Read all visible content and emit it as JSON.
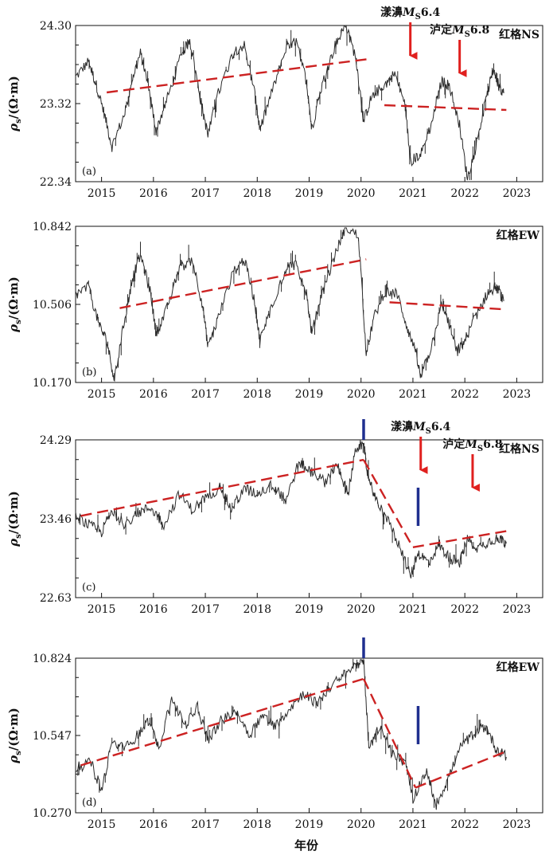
{
  "figure": {
    "x_axis_title": "年份",
    "x_tick_labels": [
      "2015",
      "2016",
      "2017",
      "2018",
      "2019",
      "2020",
      "2021",
      "2022",
      "2023"
    ],
    "y_axis_label_main": "ρ",
    "y_axis_label_sub": "s",
    "y_axis_label_unit": "/(Ω·m)"
  },
  "chart_data": [
    {
      "type": "line",
      "panel_label": "(a)",
      "station": "红格NS",
      "x_range": [
        2014.5,
        2023.5
      ],
      "ylim": [
        22.34,
        24.3
      ],
      "y_ticks": [
        "22.34",
        "23.32",
        "24.30"
      ],
      "colors": {
        "series": "#2b2b2b",
        "trend": "#cc2222",
        "arrow": "#e0201e"
      },
      "series_points": [
        [
          2014.5,
          23.65
        ],
        [
          2014.75,
          23.85
        ],
        [
          2014.9,
          23.55
        ],
        [
          2015.05,
          23.2
        ],
        [
          2015.2,
          22.78
        ],
        [
          2015.45,
          23.2
        ],
        [
          2015.6,
          23.65
        ],
        [
          2015.75,
          23.95
        ],
        [
          2015.9,
          23.55
        ],
        [
          2016.05,
          22.98
        ],
        [
          2016.25,
          23.35
        ],
        [
          2016.55,
          23.95
        ],
        [
          2016.7,
          24.12
        ],
        [
          2016.9,
          23.4
        ],
        [
          2017.05,
          22.92
        ],
        [
          2017.25,
          23.45
        ],
        [
          2017.55,
          23.98
        ],
        [
          2017.75,
          24.05
        ],
        [
          2017.95,
          23.45
        ],
        [
          2018.05,
          22.98
        ],
        [
          2018.25,
          23.4
        ],
        [
          2018.55,
          24.0
        ],
        [
          2018.75,
          24.1
        ],
        [
          2018.95,
          23.6
        ],
        [
          2019.05,
          23.0
        ],
        [
          2019.25,
          23.55
        ],
        [
          2019.5,
          24.05
        ],
        [
          2019.7,
          24.3
        ],
        [
          2019.9,
          23.9
        ],
        [
          2020.05,
          23.1
        ],
        [
          2020.2,
          23.4
        ],
        [
          2020.45,
          23.55
        ],
        [
          2020.65,
          23.7
        ],
        [
          2020.85,
          23.3
        ],
        [
          2020.95,
          22.6
        ],
        [
          2021.15,
          22.68
        ],
        [
          2021.35,
          23.05
        ],
        [
          2021.55,
          23.6
        ],
        [
          2021.7,
          23.55
        ],
        [
          2021.9,
          23.05
        ],
        [
          2022.05,
          22.38
        ],
        [
          2022.2,
          22.75
        ],
        [
          2022.4,
          23.35
        ],
        [
          2022.55,
          23.75
        ],
        [
          2022.65,
          23.55
        ],
        [
          2022.75,
          23.45
        ]
      ],
      "trend_lines": [
        {
          "x": [
            2015.1,
            2020.15
          ],
          "y": [
            23.46,
            23.88
          ]
        },
        {
          "x": [
            2020.45,
            2022.8
          ],
          "y": [
            23.3,
            23.24
          ]
        }
      ],
      "annotations": [
        {
          "label_main": "漾濞",
          "label_m": "M",
          "label_sub": "S",
          "label_mag": "6.4",
          "x": 2020.95,
          "label_pos": "top"
        },
        {
          "label_main": "泸定",
          "label_m": "M",
          "label_sub": "S",
          "label_mag": "6.8",
          "x": 2021.9,
          "label_pos": "top"
        }
      ]
    },
    {
      "type": "line",
      "panel_label": "(b)",
      "station": "红格EW",
      "x_range": [
        2014.5,
        2023.5
      ],
      "ylim": [
        10.17,
        10.842
      ],
      "y_ticks": [
        "10.170",
        "10.506",
        "10.842"
      ],
      "colors": {
        "series": "#2b2b2b",
        "trend": "#cc2222"
      },
      "series_points": [
        [
          2014.5,
          10.55
        ],
        [
          2014.75,
          10.58
        ],
        [
          2014.95,
          10.42
        ],
        [
          2015.1,
          10.35
        ],
        [
          2015.25,
          10.18
        ],
        [
          2015.45,
          10.45
        ],
        [
          2015.6,
          10.62
        ],
        [
          2015.75,
          10.72
        ],
        [
          2015.95,
          10.55
        ],
        [
          2016.05,
          10.38
        ],
        [
          2016.25,
          10.48
        ],
        [
          2016.5,
          10.66
        ],
        [
          2016.75,
          10.7
        ],
        [
          2016.95,
          10.5
        ],
        [
          2017.05,
          10.32
        ],
        [
          2017.25,
          10.45
        ],
        [
          2017.55,
          10.65
        ],
        [
          2017.75,
          10.7
        ],
        [
          2017.95,
          10.52
        ],
        [
          2018.05,
          10.35
        ],
        [
          2018.25,
          10.48
        ],
        [
          2018.55,
          10.66
        ],
        [
          2018.75,
          10.68
        ],
        [
          2018.95,
          10.55
        ],
        [
          2019.05,
          10.38
        ],
        [
          2019.25,
          10.55
        ],
        [
          2019.5,
          10.72
        ],
        [
          2019.7,
          10.84
        ],
        [
          2019.95,
          10.8
        ],
        [
          2020.1,
          10.3
        ],
        [
          2020.25,
          10.45
        ],
        [
          2020.45,
          10.56
        ],
        [
          2020.7,
          10.55
        ],
        [
          2020.9,
          10.4
        ],
        [
          2021.05,
          10.3
        ],
        [
          2021.15,
          10.19
        ],
        [
          2021.35,
          10.32
        ],
        [
          2021.55,
          10.5
        ],
        [
          2021.7,
          10.42
        ],
        [
          2021.85,
          10.3
        ],
        [
          2022.0,
          10.35
        ],
        [
          2022.2,
          10.45
        ],
        [
          2022.45,
          10.56
        ],
        [
          2022.6,
          10.58
        ],
        [
          2022.75,
          10.52
        ]
      ],
      "trend_lines": [
        {
          "x": [
            2015.35,
            2020.1
          ],
          "y": [
            10.49,
            10.7
          ]
        },
        {
          "x": [
            2020.55,
            2022.75
          ],
          "y": [
            10.515,
            10.485
          ]
        }
      ],
      "annotations": []
    },
    {
      "type": "line",
      "panel_label": "(c)",
      "station": "红格NS",
      "x_range": [
        2014.5,
        2023.5
      ],
      "ylim": [
        22.63,
        24.29
      ],
      "y_ticks": [
        "22.63",
        "23.46",
        "24.29"
      ],
      "colors": {
        "series": "#2b2b2b",
        "trend": "#cc2222",
        "arrow": "#e0201e",
        "marker": "#1f2f8f"
      },
      "series_points": [
        [
          2014.5,
          23.48
        ],
        [
          2014.8,
          23.38
        ],
        [
          2015.0,
          23.32
        ],
        [
          2015.2,
          23.55
        ],
        [
          2015.45,
          23.4
        ],
        [
          2015.7,
          23.52
        ],
        [
          2015.95,
          23.58
        ],
        [
          2016.2,
          23.4
        ],
        [
          2016.5,
          23.72
        ],
        [
          2016.75,
          23.55
        ],
        [
          2017.0,
          23.68
        ],
        [
          2017.3,
          23.8
        ],
        [
          2017.5,
          23.55
        ],
        [
          2017.75,
          23.78
        ],
        [
          2018.0,
          23.72
        ],
        [
          2018.3,
          23.82
        ],
        [
          2018.55,
          23.65
        ],
        [
          2018.8,
          24.05
        ],
        [
          2019.05,
          23.95
        ],
        [
          2019.3,
          23.85
        ],
        [
          2019.55,
          24.02
        ],
        [
          2019.75,
          23.72
        ],
        [
          2019.9,
          24.2
        ],
        [
          2020.05,
          24.25
        ],
        [
          2020.15,
          23.85
        ],
        [
          2020.3,
          23.65
        ],
        [
          2020.55,
          23.4
        ],
        [
          2020.8,
          23.1
        ],
        [
          2020.95,
          22.85
        ],
        [
          2021.1,
          23.1
        ],
        [
          2021.3,
          23.0
        ],
        [
          2021.5,
          23.18
        ],
        [
          2021.7,
          23.05
        ],
        [
          2021.9,
          23.0
        ],
        [
          2022.05,
          23.25
        ],
        [
          2022.25,
          23.15
        ],
        [
          2022.45,
          23.22
        ],
        [
          2022.65,
          23.26
        ],
        [
          2022.8,
          23.2
        ]
      ],
      "trend_lines": [
        {
          "x": [
            2014.6,
            2020.05
          ],
          "y": [
            23.49,
            24.08
          ]
        },
        {
          "x": [
            2020.05,
            2021.0
          ],
          "y": [
            24.08,
            23.16
          ]
        },
        {
          "x": [
            2021.0,
            2022.8
          ],
          "y": [
            23.16,
            23.33
          ]
        }
      ],
      "markers": [
        2020.05,
        2021.1
      ],
      "annotations": [
        {
          "label_main": "漾濞",
          "label_m": "M",
          "label_sub": "S",
          "label_mag": "6.4",
          "x": 2021.15,
          "label_pos": "top"
        },
        {
          "label_main": "泸定",
          "label_m": "M",
          "label_sub": "S",
          "label_mag": "6.8",
          "x": 2022.15,
          "label_pos": "top"
        }
      ]
    },
    {
      "type": "line",
      "panel_label": "(d)",
      "station": "红格EW",
      "x_range": [
        2014.5,
        2023.5
      ],
      "ylim": [
        10.27,
        10.824
      ],
      "y_ticks": [
        "10.270",
        "10.547",
        "10.824"
      ],
      "colors": {
        "series": "#2b2b2b",
        "trend": "#cc2222",
        "marker": "#1f2f8f"
      },
      "series_points": [
        [
          2014.5,
          10.43
        ],
        [
          2014.8,
          10.45
        ],
        [
          2015.0,
          10.35
        ],
        [
          2015.2,
          10.52
        ],
        [
          2015.45,
          10.5
        ],
        [
          2015.7,
          10.55
        ],
        [
          2015.9,
          10.6
        ],
        [
          2016.1,
          10.5
        ],
        [
          2016.35,
          10.68
        ],
        [
          2016.6,
          10.58
        ],
        [
          2016.85,
          10.65
        ],
        [
          2017.05,
          10.53
        ],
        [
          2017.3,
          10.6
        ],
        [
          2017.6,
          10.63
        ],
        [
          2017.85,
          10.55
        ],
        [
          2018.1,
          10.62
        ],
        [
          2018.35,
          10.58
        ],
        [
          2018.6,
          10.64
        ],
        [
          2018.9,
          10.7
        ],
        [
          2019.15,
          10.66
        ],
        [
          2019.4,
          10.72
        ],
        [
          2019.65,
          10.76
        ],
        [
          2019.9,
          10.8
        ],
        [
          2020.05,
          10.82
        ],
        [
          2020.15,
          10.5
        ],
        [
          2020.35,
          10.58
        ],
        [
          2020.6,
          10.48
        ],
        [
          2020.85,
          10.45
        ],
        [
          2021.0,
          10.32
        ],
        [
          2021.25,
          10.42
        ],
        [
          2021.45,
          10.3
        ],
        [
          2021.65,
          10.38
        ],
        [
          2021.9,
          10.5
        ],
        [
          2022.15,
          10.55
        ],
        [
          2022.4,
          10.58
        ],
        [
          2022.6,
          10.5
        ],
        [
          2022.8,
          10.47
        ]
      ],
      "trend_lines": [
        {
          "x": [
            2014.6,
            2020.05
          ],
          "y": [
            10.44,
            10.75
          ]
        },
        {
          "x": [
            2020.05,
            2021.05
          ],
          "y": [
            10.75,
            10.36
          ]
        },
        {
          "x": [
            2021.05,
            2022.8
          ],
          "y": [
            10.36,
            10.49
          ]
        }
      ],
      "markers": [
        2020.05,
        2021.1
      ],
      "annotations": []
    }
  ]
}
